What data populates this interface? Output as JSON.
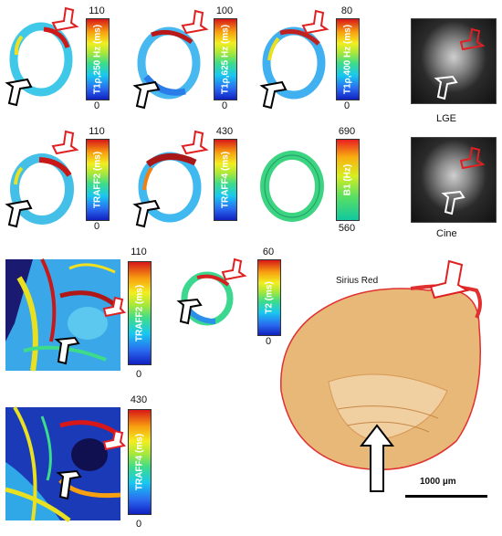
{
  "colorbars": {
    "t1rho_250": {
      "max": "110",
      "min": "0",
      "label": "T1ρ,250 Hz (ms)"
    },
    "t1rho_625": {
      "max": "100",
      "min": "0",
      "label": "T1ρ,625 Hz (ms)"
    },
    "t1rho_400": {
      "max": "80",
      "min": "0",
      "label": "T1ρ,400 Hz (ms)"
    },
    "traff2_top": {
      "max": "110",
      "min": "0",
      "label": "TRAFF2 (ms)"
    },
    "traff4_top": {
      "max": "430",
      "min": "",
      "label": "TRAFF4 (ms)"
    },
    "b1": {
      "max": "690",
      "min": "560",
      "label": "B1 (Hz)"
    },
    "traff2_ex": {
      "max": "110",
      "min": "0",
      "label": "TRAFF2 (ms)"
    },
    "t2": {
      "max": "60",
      "min": "0",
      "label": "T2 (ms)"
    },
    "traff4_ex": {
      "max": "430",
      "min": "0",
      "label": "TRAFF4 (ms)"
    }
  },
  "captions": {
    "lge": "LGE",
    "cine": "Cine",
    "sirius": "Sirius Red",
    "scale": "1000 µm"
  },
  "colors": {
    "arrow_red": "#e02020",
    "arrow_black": "#000000",
    "sirius_tissue": "#e8b878",
    "sirius_stain": "#e03030"
  },
  "icons": {
    "red_arrow": "arrow-icon",
    "black_arrow": "arrow-icon"
  }
}
